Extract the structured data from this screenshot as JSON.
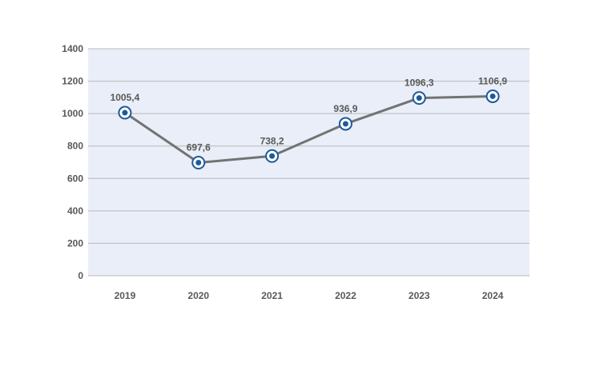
{
  "chart_data": {
    "type": "line",
    "title": "",
    "xlabel": "",
    "ylabel": "",
    "categories": [
      "2019",
      "2020",
      "2021",
      "2022",
      "2023",
      "2024"
    ],
    "series": [
      {
        "values": [
          1005.4,
          697.6,
          738.2,
          936.9,
          1096.3,
          1106.9
        ],
        "data_labels": [
          "1005,4",
          "697,6",
          "738,2",
          "936,9",
          "1096,3",
          "1106,9"
        ]
      }
    ],
    "ylim": [
      0,
      1400
    ],
    "yticks": [
      0,
      200,
      400,
      600,
      800,
      1000,
      1200,
      1400
    ],
    "grid": true,
    "legend": "none",
    "colors": {
      "plot_background": "#e9eef8",
      "gridline": "#b8b8b8",
      "line": "#737373",
      "marker_fill": "#1f5a99",
      "marker_ring": "#ffffff",
      "text": "#595959"
    }
  }
}
